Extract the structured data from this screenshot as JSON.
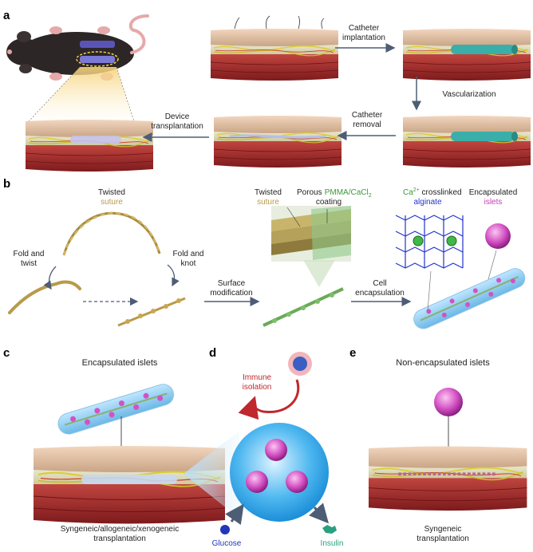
{
  "panels": {
    "a": "a",
    "b": "b",
    "c": "c",
    "d": "d",
    "e": "e"
  },
  "panel_a": {
    "step1_l1": "Catheter",
    "step1_l2": "implantation",
    "step2": "Vascularization",
    "step3_l1": "Catheter",
    "step3_l2": "removal",
    "step4_l1": "Device",
    "step4_l2": "transplantation"
  },
  "panel_b": {
    "twisted": "Twisted",
    "suture": "suture",
    "fold_twist_l1": "Fold and",
    "fold_twist_l2": "twist",
    "fold_knot_l1": "Fold and",
    "fold_knot_l2": "knot",
    "surface_l1": "Surface",
    "surface_l2": "modification",
    "twisted2": "Twisted",
    "suture2": "suture",
    "porous": "Porous",
    "pmma": "PMMA/CaCl",
    "pmma_sub": "2",
    "coating": "coating",
    "ca": "Ca",
    "ca_sup": "2+",
    "crosslinked": " crosslinked",
    "alginate": "alginate",
    "encapsulated": "Encapsulated",
    "islets": "islets",
    "cell_l1": "Cell",
    "cell_l2": "encapsulation"
  },
  "panel_c": {
    "title": "Encapsulated islets",
    "caption_l1": "Syngeneic/allogeneic/xenogeneic",
    "caption_l2": "transplantation"
  },
  "panel_d": {
    "immune_l1": "Immune",
    "immune_l2": "isolation",
    "glucose": "Glucose",
    "insulin": "Insulin"
  },
  "panel_e": {
    "title": "Non-encapsulated islets",
    "caption_l1": "Syngeneic",
    "caption_l2": "transplantation"
  },
  "colors": {
    "suture_gold": "#b99a4a",
    "coating_green": "#3a9a3a",
    "alginate_blue": "#2233cc",
    "islet_magenta": "#c23fb5",
    "immune_red": "#c0282d",
    "arrow_gray": "#4d5d75"
  }
}
